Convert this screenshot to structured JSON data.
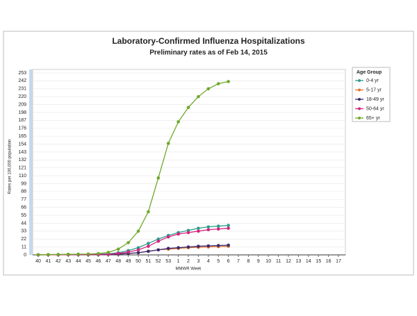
{
  "chart_data": {
    "type": "line",
    "title": "Laboratory-Confirmed Influenza Hospitalizations",
    "subtitle": "Preliminary rates as of Feb 14, 2015",
    "y_label": "Rates per 100,000 population",
    "x_label": "MMWR Week",
    "legend_title": "Age Group",
    "legend_position": "right",
    "grid": true,
    "categories": [
      "40",
      "41",
      "42",
      "43",
      "44",
      "45",
      "46",
      "47",
      "48",
      "49",
      "50",
      "51",
      "52",
      "53",
      "1",
      "2",
      "3",
      "4",
      "5",
      "6",
      "7",
      "8",
      "9",
      "10",
      "11",
      "12",
      "13",
      "14",
      "15",
      "16",
      "17"
    ],
    "ylim": [
      0,
      253
    ],
    "yticks": [
      0,
      11,
      22,
      33,
      44,
      55,
      66,
      77,
      88,
      99,
      110,
      121,
      132,
      143,
      154,
      165,
      176,
      187,
      198,
      209,
      220,
      231,
      242,
      253
    ],
    "series": [
      {
        "name": "0-4 yr",
        "color": "#2e9e8a",
        "values": [
          0.1,
          0.2,
          0.3,
          0.4,
          0.5,
          0.7,
          1,
          1.5,
          3,
          6,
          10,
          16,
          22,
          27,
          31,
          34,
          37,
          39,
          40,
          41,
          null,
          null,
          null,
          null,
          null,
          null,
          null,
          null,
          null,
          null,
          null
        ]
      },
      {
        "name": "5-17 yr",
        "color": "#e3722e",
        "values": [
          0,
          0.1,
          0.1,
          0.2,
          0.2,
          0.3,
          0.4,
          0.6,
          1,
          2,
          3,
          5,
          7,
          8,
          9,
          10,
          10.5,
          11,
          11.5,
          12,
          null,
          null,
          null,
          null,
          null,
          null,
          null,
          null,
          null,
          null,
          null
        ]
      },
      {
        "name": "18-49 yr",
        "color": "#3b2a6e",
        "values": [
          0,
          0.1,
          0.1,
          0.2,
          0.2,
          0.3,
          0.4,
          0.6,
          1,
          2,
          3,
          5,
          7,
          9,
          10,
          11,
          12,
          12.5,
          13,
          13.5,
          null,
          null,
          null,
          null,
          null,
          null,
          null,
          null,
          null,
          null,
          null
        ]
      },
      {
        "name": "50-64 yr",
        "color": "#d4237f",
        "values": [
          0.1,
          0.1,
          0.2,
          0.3,
          0.4,
          0.5,
          0.7,
          1,
          2,
          4,
          7,
          12,
          19,
          25,
          29,
          31,
          33,
          35,
          36,
          37,
          null,
          null,
          null,
          null,
          null,
          null,
          null,
          null,
          null,
          null,
          null
        ]
      },
      {
        "name": "65+ yr",
        "color": "#6fa82a",
        "values": [
          0.2,
          0.4,
          0.6,
          0.8,
          1,
          1.2,
          1.8,
          3.5,
          8,
          17,
          33,
          60,
          107,
          155,
          185,
          205,
          220,
          231,
          238,
          241,
          null,
          null,
          null,
          null,
          null,
          null,
          null,
          null,
          null,
          null,
          null
        ]
      }
    ]
  }
}
